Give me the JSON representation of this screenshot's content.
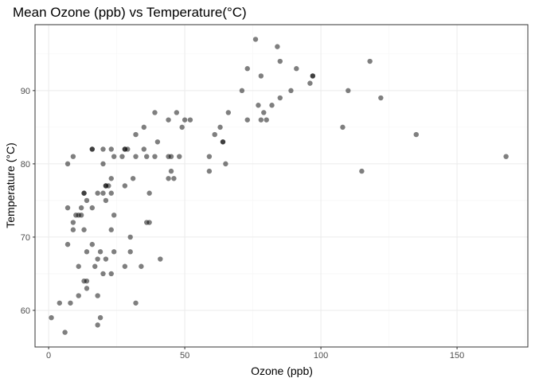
{
  "chart_data": {
    "type": "scatter",
    "title": "Mean Ozone (ppb) vs Temperature(°C)",
    "xlabel": "Ozone (ppb)",
    "ylabel": "Temperature (°C)",
    "xlim": [
      -5,
      176
    ],
    "ylim": [
      55,
      99
    ],
    "xticks": [
      0,
      50,
      100,
      150
    ],
    "yticks": [
      60,
      70,
      80,
      90
    ],
    "grid": true,
    "point_color": "#000000",
    "point_opacity": 0.5,
    "points": [
      {
        "x": 1,
        "y": 59
      },
      {
        "x": 4,
        "y": 61
      },
      {
        "x": 6,
        "y": 57
      },
      {
        "x": 7,
        "y": 74
      },
      {
        "x": 7,
        "y": 69
      },
      {
        "x": 7,
        "y": 80
      },
      {
        "x": 8,
        "y": 61
      },
      {
        "x": 9,
        "y": 81
      },
      {
        "x": 9,
        "y": 71
      },
      {
        "x": 9,
        "y": 72
      },
      {
        "x": 10,
        "y": 73
      },
      {
        "x": 11,
        "y": 73
      },
      {
        "x": 11,
        "y": 66
      },
      {
        "x": 11,
        "y": 62
      },
      {
        "x": 12,
        "y": 73
      },
      {
        "x": 12,
        "y": 74
      },
      {
        "x": 13,
        "y": 76
      },
      {
        "x": 13,
        "y": 76
      },
      {
        "x": 13,
        "y": 64
      },
      {
        "x": 13,
        "y": 71
      },
      {
        "x": 14,
        "y": 75
      },
      {
        "x": 14,
        "y": 68
      },
      {
        "x": 14,
        "y": 64
      },
      {
        "x": 14,
        "y": 63
      },
      {
        "x": 16,
        "y": 82
      },
      {
        "x": 16,
        "y": 82
      },
      {
        "x": 16,
        "y": 74
      },
      {
        "x": 16,
        "y": 69
      },
      {
        "x": 17,
        "y": 66
      },
      {
        "x": 18,
        "y": 76
      },
      {
        "x": 18,
        "y": 67
      },
      {
        "x": 18,
        "y": 62
      },
      {
        "x": 18,
        "y": 58
      },
      {
        "x": 19,
        "y": 59
      },
      {
        "x": 19,
        "y": 68
      },
      {
        "x": 20,
        "y": 82
      },
      {
        "x": 20,
        "y": 80
      },
      {
        "x": 20,
        "y": 65
      },
      {
        "x": 20,
        "y": 76
      },
      {
        "x": 21,
        "y": 77
      },
      {
        "x": 21,
        "y": 77
      },
      {
        "x": 21,
        "y": 67
      },
      {
        "x": 21,
        "y": 75
      },
      {
        "x": 22,
        "y": 77
      },
      {
        "x": 23,
        "y": 82
      },
      {
        "x": 23,
        "y": 76
      },
      {
        "x": 23,
        "y": 78
      },
      {
        "x": 23,
        "y": 71
      },
      {
        "x": 23,
        "y": 65
      },
      {
        "x": 24,
        "y": 73
      },
      {
        "x": 24,
        "y": 68
      },
      {
        "x": 24,
        "y": 81
      },
      {
        "x": 27,
        "y": 81
      },
      {
        "x": 28,
        "y": 82
      },
      {
        "x": 28,
        "y": 77
      },
      {
        "x": 28,
        "y": 82
      },
      {
        "x": 28,
        "y": 66
      },
      {
        "x": 29,
        "y": 82
      },
      {
        "x": 30,
        "y": 70
      },
      {
        "x": 30,
        "y": 68
      },
      {
        "x": 31,
        "y": 78
      },
      {
        "x": 32,
        "y": 84
      },
      {
        "x": 32,
        "y": 61
      },
      {
        "x": 32,
        "y": 81
      },
      {
        "x": 34,
        "y": 66
      },
      {
        "x": 35,
        "y": 85
      },
      {
        "x": 35,
        "y": 82
      },
      {
        "x": 36,
        "y": 72
      },
      {
        "x": 36,
        "y": 81
      },
      {
        "x": 37,
        "y": 72
      },
      {
        "x": 37,
        "y": 76
      },
      {
        "x": 39,
        "y": 87
      },
      {
        "x": 39,
        "y": 81
      },
      {
        "x": 40,
        "y": 83
      },
      {
        "x": 41,
        "y": 67
      },
      {
        "x": 44,
        "y": 86
      },
      {
        "x": 44,
        "y": 78
      },
      {
        "x": 44,
        "y": 81
      },
      {
        "x": 45,
        "y": 81
      },
      {
        "x": 45,
        "y": 79
      },
      {
        "x": 46,
        "y": 78
      },
      {
        "x": 47,
        "y": 87
      },
      {
        "x": 48,
        "y": 81
      },
      {
        "x": 49,
        "y": 85
      },
      {
        "x": 50,
        "y": 86
      },
      {
        "x": 52,
        "y": 86
      },
      {
        "x": 59,
        "y": 81
      },
      {
        "x": 59,
        "y": 79
      },
      {
        "x": 61,
        "y": 84
      },
      {
        "x": 63,
        "y": 85
      },
      {
        "x": 64,
        "y": 83
      },
      {
        "x": 64,
        "y": 83
      },
      {
        "x": 65,
        "y": 80
      },
      {
        "x": 66,
        "y": 87
      },
      {
        "x": 71,
        "y": 90
      },
      {
        "x": 73,
        "y": 93
      },
      {
        "x": 73,
        "y": 86
      },
      {
        "x": 76,
        "y": 97
      },
      {
        "x": 77,
        "y": 88
      },
      {
        "x": 78,
        "y": 92
      },
      {
        "x": 78,
        "y": 86
      },
      {
        "x": 79,
        "y": 87
      },
      {
        "x": 80,
        "y": 86
      },
      {
        "x": 82,
        "y": 88
      },
      {
        "x": 84,
        "y": 96
      },
      {
        "x": 85,
        "y": 94
      },
      {
        "x": 85,
        "y": 89
      },
      {
        "x": 89,
        "y": 90
      },
      {
        "x": 91,
        "y": 93
      },
      {
        "x": 96,
        "y": 91
      },
      {
        "x": 97,
        "y": 92
      },
      {
        "x": 97,
        "y": 92
      },
      {
        "x": 108,
        "y": 85
      },
      {
        "x": 110,
        "y": 90
      },
      {
        "x": 115,
        "y": 79
      },
      {
        "x": 118,
        "y": 94
      },
      {
        "x": 122,
        "y": 89
      },
      {
        "x": 135,
        "y": 84
      },
      {
        "x": 168,
        "y": 81
      }
    ]
  }
}
